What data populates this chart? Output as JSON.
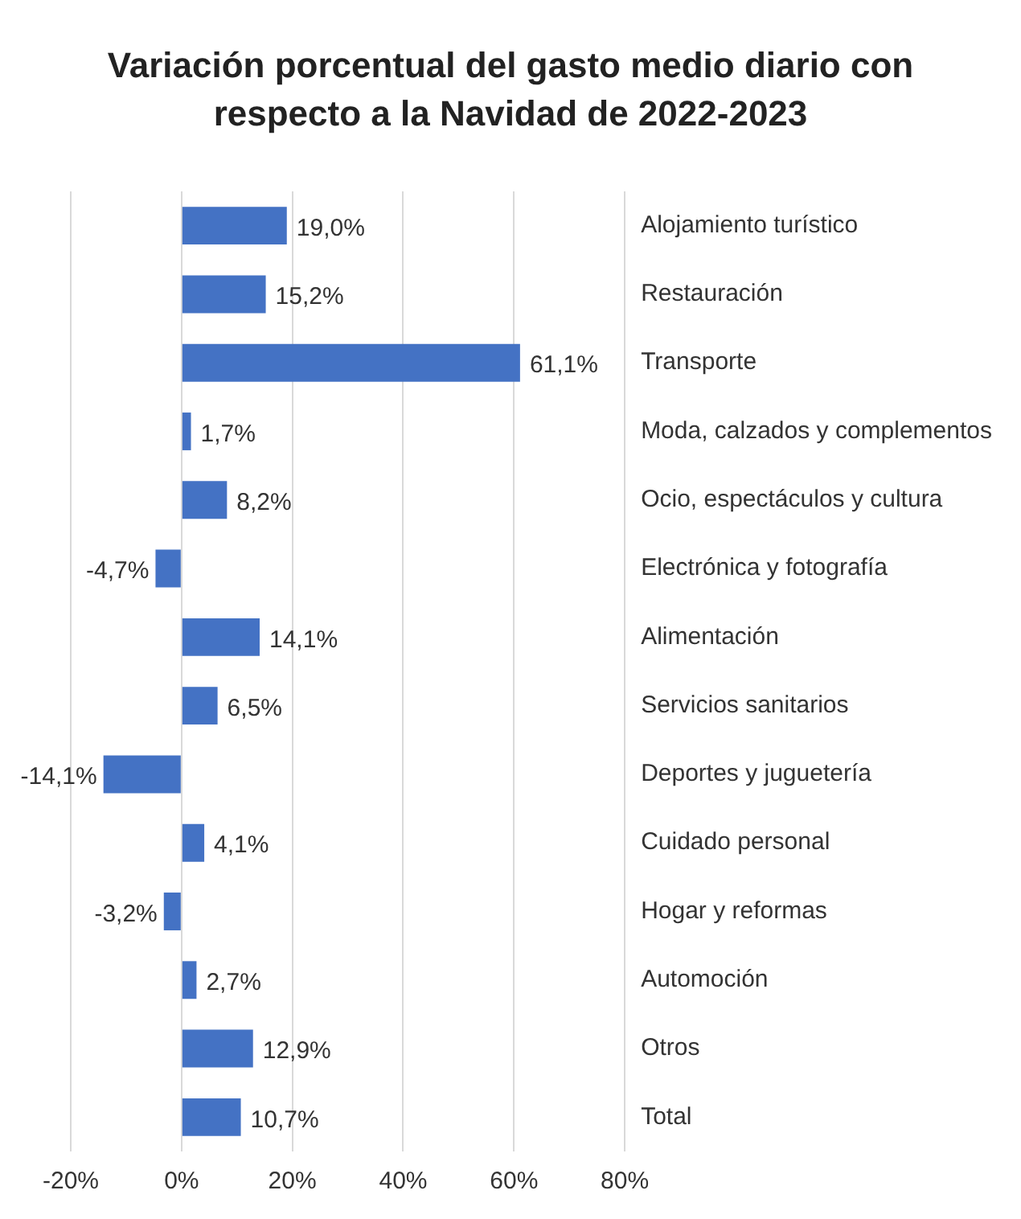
{
  "chart_data": {
    "type": "bar",
    "orientation": "horizontal",
    "title": "Variación porcentual del gasto medio diario con respecto a la Navidad de 2022-2023",
    "categories": [
      "Alojamiento turístico",
      "Restauración",
      "Transporte",
      "Moda, calzados y complementos",
      "Ocio, espectáculos y cultura",
      "Electrónica y fotografía",
      "Alimentación",
      "Servicios sanitarios",
      "Deportes y juguetería",
      "Cuidado personal",
      "Hogar y reformas",
      "Automoción",
      "Otros",
      "Total"
    ],
    "values": [
      19.0,
      15.2,
      61.1,
      1.7,
      8.2,
      -4.7,
      14.1,
      6.5,
      -14.1,
      4.1,
      -3.2,
      2.7,
      12.9,
      10.7
    ],
    "value_labels": [
      "19,0%",
      "15,2%",
      "61,1%",
      "1,7%",
      "8,2%",
      "-4,7%",
      "14,1%",
      "6,5%",
      "-14,1%",
      "4,1%",
      "-3,2%",
      "2,7%",
      "12,9%",
      "10,7%"
    ],
    "color": "#4472c4",
    "xlim": [
      -20,
      80
    ],
    "xticks": [
      {
        "value": -20,
        "label": "-20%"
      },
      {
        "value": 0,
        "label": "0%"
      },
      {
        "value": 20,
        "label": "20%"
      },
      {
        "value": 40,
        "label": "40%"
      },
      {
        "value": 60,
        "label": "60%"
      },
      {
        "value": 80,
        "label": "80%"
      }
    ],
    "grid": "x",
    "legend": false
  }
}
